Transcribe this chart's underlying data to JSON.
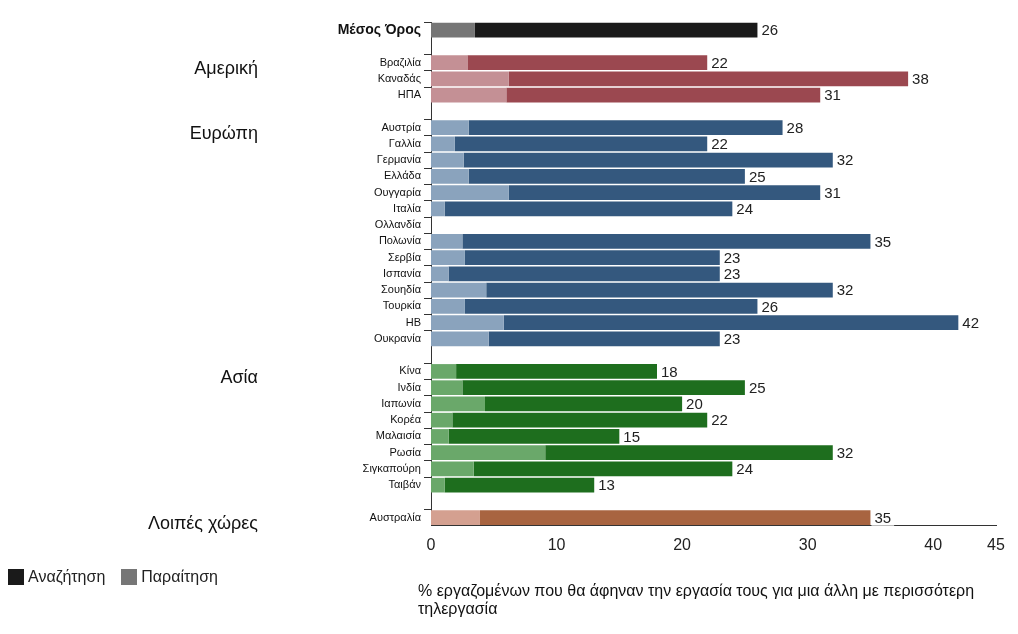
{
  "chart_data": {
    "type": "bar",
    "orientation": "horizontal",
    "stacked": true,
    "categories": [
      "Μέσος Όρος",
      null,
      "Βραζιλία",
      "Καναδάς",
      "ΗΠΑ",
      null,
      "Αυστρία",
      "Γαλλία",
      "Γερμανία",
      "Ελλάδα",
      "Ουγγαρία",
      "Ιταλία",
      "Ολλανδία",
      "Πολωνία",
      "Σερβία",
      "Ισπανία",
      "Σουηδία",
      "Τουρκία",
      "ΗΒ",
      "Ουκρανία",
      null,
      "Κίνα",
      "Ινδία",
      "Ιαπωνία",
      "Κορέα",
      "Μαλαισία",
      "Ρωσία",
      "Σιγκαπούρη",
      "Ταιβάν",
      null,
      "Αυστραλία"
    ],
    "series": [
      {
        "name": "Παραίτηση",
        "color": "#767676",
        "values": [
          3.5,
          null,
          2.9,
          6.2,
          6.0,
          null,
          3.0,
          1.9,
          2.6,
          3.0,
          6.2,
          1.1,
          null,
          2.5,
          2.7,
          1.4,
          4.4,
          2.7,
          5.8,
          4.6,
          null,
          2.0,
          2.5,
          4.3,
          1.7,
          1.4,
          9.1,
          3.4,
          1.1,
          null,
          3.9
        ],
        "colors": [
          "#767676",
          null,
          "#c49095",
          "#c49095",
          "#c49095",
          null,
          "#8aa3bd",
          "#8aa3bd",
          "#8aa3bd",
          "#8aa3bd",
          "#8aa3bd",
          "#8aa3bd",
          null,
          "#8aa3bd",
          "#8aa3bd",
          "#8aa3bd",
          "#8aa3bd",
          "#8aa3bd",
          "#8aa3bd",
          "#8aa3bd",
          null,
          "#6aa86a",
          "#6aa86a",
          "#6aa86a",
          "#6aa86a",
          "#6aa86a",
          "#6aa86a",
          "#6aa86a",
          "#6aa86a",
          null,
          "#d4a090"
        ]
      },
      {
        "name": "Αναζήτηση",
        "color": "#1a1a1a",
        "values": [
          22.5,
          null,
          19.1,
          31.8,
          25.0,
          null,
          25.0,
          20.1,
          29.4,
          22.0,
          24.8,
          22.9,
          null,
          32.5,
          20.3,
          21.6,
          27.6,
          23.3,
          36.2,
          18.4,
          null,
          16.0,
          22.5,
          15.7,
          20.3,
          13.6,
          22.9,
          20.6,
          11.9,
          null,
          31.1
        ],
        "colors": [
          "#1a1a1a",
          null,
          "#9b4850",
          "#9b4850",
          "#9b4850",
          null,
          "#34587e",
          "#34587e",
          "#34587e",
          "#34587e",
          "#34587e",
          "#34587e",
          null,
          "#34587e",
          "#34587e",
          "#34587e",
          "#34587e",
          "#34587e",
          "#34587e",
          "#34587e",
          null,
          "#1e6e1e",
          "#1e6e1e",
          "#1e6e1e",
          "#1e6e1e",
          "#1e6e1e",
          "#1e6e1e",
          "#1e6e1e",
          "#1e6e1e",
          null,
          "#a86440"
        ]
      }
    ],
    "totals": [
      "26",
      null,
      "22",
      "38",
      "31",
      null,
      "28",
      "22",
      "32",
      "25",
      "31",
      "24",
      null,
      "35",
      "23",
      "23",
      "32",
      "26",
      "42",
      "23",
      null,
      "18",
      "25",
      "20",
      "22",
      "15",
      "32",
      "24",
      "13",
      null,
      "35"
    ],
    "xlim": [
      0,
      45
    ],
    "xticks": [
      0,
      10,
      20,
      30,
      40,
      45
    ],
    "xlabel": "% εργαζομένων που θα άφηναν την εργασία τους για μια άλλη με περισσότερη τηλεργασία",
    "annotations": [
      "Αμερική",
      "Ευρώπη",
      "Ασία",
      "Λοιπές χώρες"
    ],
    "legend": "bottom left",
    "grid": false
  }
}
